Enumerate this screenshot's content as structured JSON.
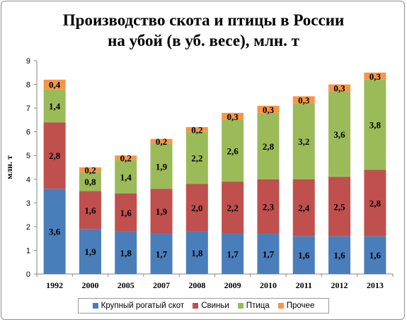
{
  "chart_data": {
    "type": "bar",
    "stacked": true,
    "title_line1": "Производство скота и птицы в России",
    "title_line2": "на убой (в уб. весе), млн. т",
    "xlabel": "",
    "ylabel": "млн. т",
    "ylim": [
      0,
      9
    ],
    "yticks": [
      "0",
      "1",
      "2",
      "3",
      "4",
      "5",
      "6",
      "7",
      "8",
      "9"
    ],
    "categories": [
      "1992",
      "2000",
      "2005",
      "2007",
      "2008",
      "2009",
      "2010",
      "2011",
      "2012",
      "2013"
    ],
    "series": [
      {
        "name": "Крупный рогатый скот",
        "color": "#4a7ebb",
        "values": [
          3.6,
          1.9,
          1.8,
          1.7,
          1.8,
          1.7,
          1.7,
          1.6,
          1.6,
          1.6
        ],
        "labels": [
          "3,6",
          "1,9",
          "1,8",
          "1,7",
          "1,8",
          "1,7",
          "1,7",
          "1,6",
          "1,6",
          "1,6"
        ]
      },
      {
        "name": "Свиньи",
        "color": "#c0504d",
        "values": [
          2.8,
          1.6,
          1.6,
          1.9,
          2.0,
          2.2,
          2.3,
          2.4,
          2.5,
          2.8
        ],
        "labels": [
          "2,8",
          "1,6",
          "1,6",
          "1,9",
          "2,0",
          "2,2",
          "2,3",
          "2,4",
          "2,5",
          "2,8"
        ]
      },
      {
        "name": "Птица",
        "color": "#9bbb59",
        "values": [
          1.4,
          0.8,
          1.4,
          1.9,
          2.2,
          2.6,
          2.8,
          3.2,
          3.6,
          3.8
        ],
        "labels": [
          "1,4",
          "0,8",
          "1,4",
          "1,9",
          "2,2",
          "2,6",
          "2,8",
          "3,2",
          "3,6",
          "3,8"
        ]
      },
      {
        "name": "Прочее",
        "color": "#f79646",
        "values": [
          0.4,
          0.2,
          0.2,
          0.2,
          0.2,
          0.3,
          0.3,
          0.3,
          0.3,
          0.3
        ],
        "labels": [
          "0,4",
          "0,2",
          "0,2",
          "0,2",
          "0,2",
          "0,3",
          "0,3",
          "0,3",
          "0,3",
          "0,3"
        ]
      }
    ],
    "legend_position": "bottom",
    "grid": false
  }
}
